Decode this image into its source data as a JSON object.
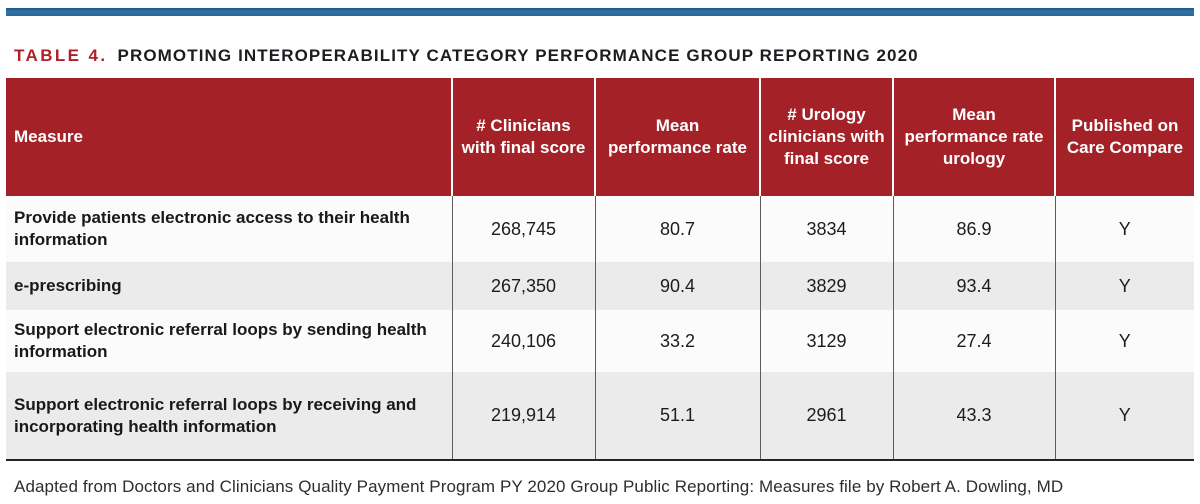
{
  "page": {
    "table_label": "TABLE 4.",
    "title": "PROMOTING INTEROPERABILITY CATEGORY PERFORMANCE GROUP REPORTING 2020",
    "footnote": "Adapted from Doctors and Clinicians Quality Payment Program PY 2020 Group Public Reporting: Measures file by Robert A. Dowling, MD"
  },
  "colors": {
    "accent_bar_blue": "#2e6d9e",
    "header_red": "#a32127",
    "title_red": "#b01f27",
    "row_light": "#fbfbfb",
    "row_alt_gray": "#ebebeb"
  },
  "table": {
    "columns": [
      "Measure",
      "# Clinicians with final score",
      "Mean performance rate",
      "# Urology clinicians with final score",
      "Mean performance rate urology",
      "Published on Care Compare"
    ],
    "rows": [
      {
        "measure": "Provide patients electronic access to their health information",
        "clinicians_with_final_score": "268,745",
        "mean_performance_rate": "80.7",
        "urology_clinicians_with_final_score": "3834",
        "mean_performance_rate_urology": "86.9",
        "published_on_care_compare": "Y"
      },
      {
        "measure": "e-prescribing",
        "clinicians_with_final_score": "267,350",
        "mean_performance_rate": "90.4",
        "urology_clinicians_with_final_score": "3829",
        "mean_performance_rate_urology": "93.4",
        "published_on_care_compare": "Y"
      },
      {
        "measure": "Support electronic referral loops by sending health information",
        "clinicians_with_final_score": "240,106",
        "mean_performance_rate": "33.2",
        "urology_clinicians_with_final_score": "3129",
        "mean_performance_rate_urology": "27.4",
        "published_on_care_compare": "Y"
      },
      {
        "measure": "Support electronic referral loops by receiving and incorporating health information",
        "clinicians_with_final_score": "219,914",
        "mean_performance_rate": "51.1",
        "urology_clinicians_with_final_score": "2961",
        "mean_performance_rate_urology": "43.3",
        "published_on_care_compare": "Y"
      }
    ]
  },
  "chart_data": {
    "type": "table",
    "title": "TABLE 4. PROMOTING INTEROPERABILITY CATEGORY PERFORMANCE GROUP REPORTING 2020",
    "columns": [
      "Measure",
      "# Clinicians with final score",
      "Mean performance rate",
      "# Urology clinicians with final score",
      "Mean performance rate urology",
      "Published on Care Compare"
    ],
    "rows": [
      [
        "Provide patients electronic access to their health information",
        "268,745",
        "80.7",
        "3834",
        "86.9",
        "Y"
      ],
      [
        "e-prescribing",
        "267,350",
        "90.4",
        "3829",
        "93.4",
        "Y"
      ],
      [
        "Support electronic referral loops by sending health information",
        "240,106",
        "33.2",
        "3129",
        "27.4",
        "Y"
      ],
      [
        "Support electronic referral loops by receiving and incorporating health information",
        "219,914",
        "51.1",
        "2961",
        "43.3",
        "Y"
      ]
    ]
  }
}
